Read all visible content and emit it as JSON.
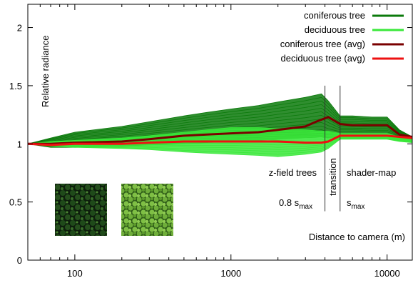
{
  "chart_data": {
    "type": "line",
    "xscale": "log",
    "xlim": [
      50,
      14500
    ],
    "ylim": [
      0,
      2.2
    ],
    "xticks": [
      100,
      1000,
      10000
    ],
    "xtick_labels": [
      "100",
      "1000",
      "10000"
    ],
    "yticks": [
      0,
      0.5,
      1,
      1.5,
      2
    ],
    "ytick_labels": [
      "0",
      "0.5",
      "1",
      "1.5",
      "2"
    ],
    "xlabel": "Distance to camera (m)",
    "ylabel": "Relative radiance",
    "grid": false,
    "legend_position": "top-right",
    "colors": {
      "coniferous": "#0b7a0b",
      "deciduous": "#3ae83a",
      "coniferous_avg": "#7a0000",
      "deciduous_avg": "#ee1111",
      "axis": "#000000",
      "marker_line": "#333333"
    },
    "series": [
      {
        "name": "coniferous tree",
        "role": "band",
        "x": [
          50,
          70,
          100,
          200,
          300,
          500,
          700,
          1000,
          1500,
          2000,
          3000,
          3800,
          4200,
          5000,
          6000,
          8000,
          10000,
          12000,
          14500
        ],
        "low": [
          1.0,
          0.97,
          0.97,
          0.98,
          0.99,
          1.0,
          1.01,
          1.02,
          1.03,
          1.04,
          1.05,
          1.06,
          1.05,
          1.06,
          1.06,
          1.06,
          1.06,
          1.05,
          1.04
        ],
        "high": [
          1.0,
          1.05,
          1.1,
          1.15,
          1.19,
          1.24,
          1.27,
          1.3,
          1.33,
          1.36,
          1.4,
          1.43,
          1.37,
          1.24,
          1.24,
          1.23,
          1.23,
          1.12,
          1.06
        ]
      },
      {
        "name": "deciduous tree",
        "role": "band",
        "x": [
          50,
          70,
          100,
          200,
          300,
          500,
          700,
          1000,
          1500,
          2000,
          3000,
          3800,
          4200,
          5000,
          6000,
          8000,
          10000,
          12000,
          14500
        ],
        "low": [
          1.0,
          0.98,
          0.97,
          0.96,
          0.95,
          0.93,
          0.92,
          0.91,
          0.9,
          0.89,
          0.91,
          0.93,
          0.96,
          1.04,
          1.04,
          1.04,
          1.04,
          1.02,
          1.01
        ],
        "high": [
          1.0,
          1.02,
          1.03,
          1.05,
          1.07,
          1.1,
          1.12,
          1.14,
          1.14,
          1.13,
          1.12,
          1.11,
          1.11,
          1.09,
          1.09,
          1.09,
          1.09,
          1.06,
          1.04
        ]
      },
      {
        "name": "coniferous tree (avg)",
        "role": "avg",
        "x": [
          50,
          70,
          100,
          200,
          300,
          500,
          700,
          1000,
          1500,
          2000,
          3000,
          3500,
          4200,
          5000,
          6000,
          8000,
          10000,
          12000,
          14500
        ],
        "y": [
          1.0,
          1.0,
          1.01,
          1.02,
          1.04,
          1.07,
          1.08,
          1.09,
          1.1,
          1.12,
          1.15,
          1.19,
          1.23,
          1.17,
          1.16,
          1.16,
          1.16,
          1.08,
          1.06
        ]
      },
      {
        "name": "deciduous tree (avg)",
        "role": "avg",
        "x": [
          50,
          70,
          100,
          200,
          300,
          500,
          700,
          1000,
          1500,
          2000,
          3000,
          3800,
          4200,
          5000,
          6000,
          8000,
          10000,
          12000,
          14500
        ],
        "y": [
          1.0,
          0.99,
          1.0,
          1.0,
          1.01,
          1.02,
          1.02,
          1.02,
          1.02,
          1.02,
          1.01,
          1.01,
          1.02,
          1.07,
          1.07,
          1.07,
          1.07,
          1.06,
          1.05
        ]
      }
    ],
    "vertical_markers": [
      {
        "x": 4000
      },
      {
        "x": 5000
      }
    ],
    "annotations": {
      "z_field": "z-field trees",
      "transition": "transition",
      "shader_map": "shader-map",
      "s_max_prefix": "0.8 s",
      "s_max_sub": "max",
      "s_max_base": "s",
      "s_max_base_sub": "max"
    },
    "thumbnails": [
      {
        "name": "coniferous-forest-thumbnail",
        "tone": "dark-green"
      },
      {
        "name": "deciduous-forest-thumbnail",
        "tone": "light-green"
      }
    ]
  }
}
